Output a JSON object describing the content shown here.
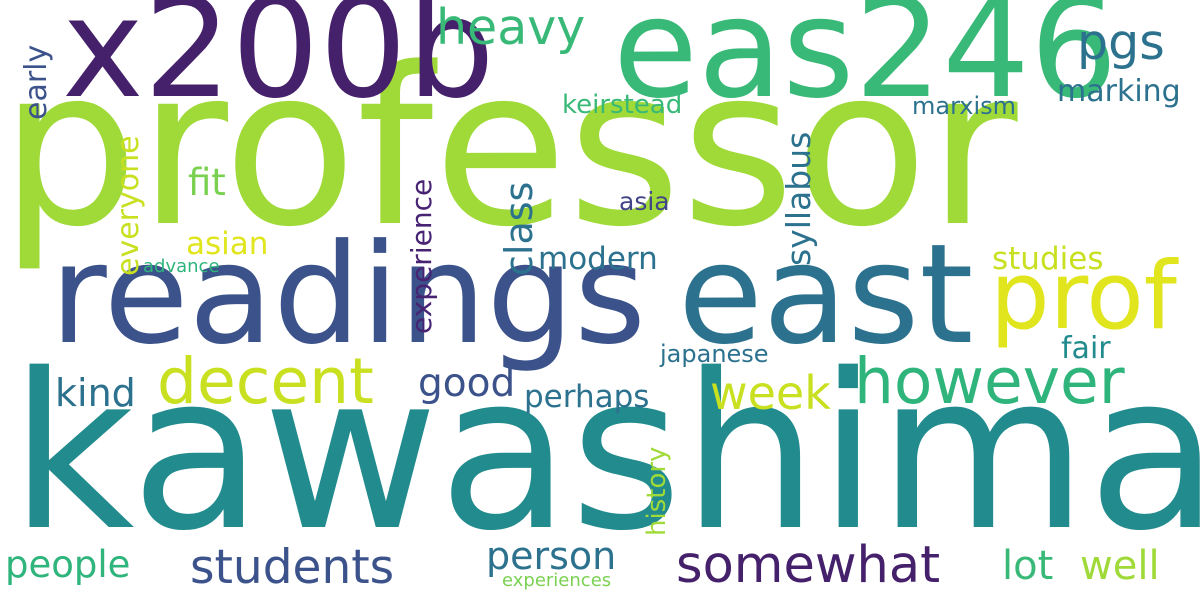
{
  "words": {
    "professor": "professor",
    "kawashima": "kawashima",
    "x200b": "x200b",
    "eas246": "eas246",
    "readings": "readings",
    "east": "east",
    "prof": "prof",
    "heavy": "heavy",
    "pgs": "pgs",
    "marking": "marking",
    "keirstead": "keirstead",
    "marxism": "marxism",
    "early": "early",
    "everyone": "everyone",
    "fit": "fit",
    "asian": "asian",
    "advance": "advance",
    "experience": "experience",
    "class": "class",
    "syllabus": "syllabus",
    "asia": "asia",
    "modern": "modern",
    "studies": "studies",
    "decent": "decent",
    "however": "however",
    "japanese": "japanese",
    "fair": "fair",
    "kind": "kind",
    "good": "good",
    "week": "week",
    "perhaps": "perhaps",
    "history": "history",
    "people": "people",
    "students": "students",
    "person": "person",
    "somewhat": "somewhat",
    "lot": "lot",
    "well": "well",
    "experiences": "experiences"
  },
  "colors": {
    "lime": "#a0da39",
    "teal": "#228b8d",
    "purple": "#46216b",
    "green": "#38b977",
    "indigo": "#3b528b",
    "blue": "#2c728e",
    "yellow": "#e0e51d",
    "yellow_green": "#c8e020",
    "light_green": "#7ad151",
    "mid_green": "#2fb47c",
    "slate": "#414487",
    "dark_purple": "#482374",
    "sea_green": "#1fa187"
  }
}
